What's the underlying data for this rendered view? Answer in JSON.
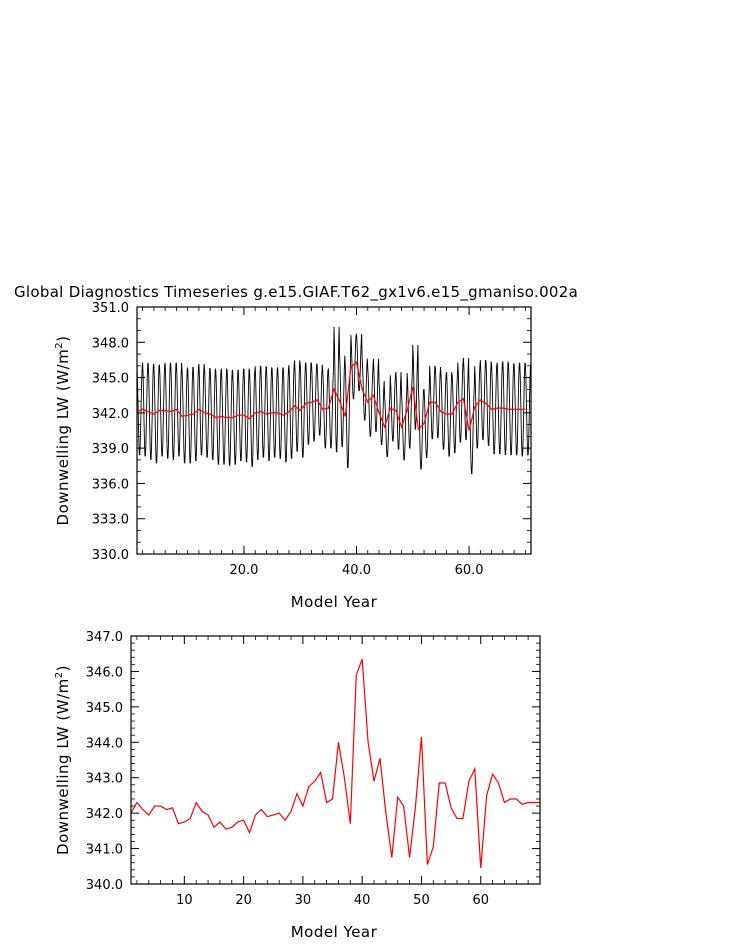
{
  "title": "Global Diagnostics Timeseries g.e15.GIAF.T62_gx1v6.e15_gmaniso.002a",
  "colors": {
    "monthly_line": "#000000",
    "annual_line": "#ff0000",
    "axis": "#000000"
  },
  "chart_data": [
    {
      "type": "line",
      "xlabel": "Model Year",
      "ylabel_main": "Downwelling LW (W/m",
      "ylabel_sup": "2",
      "ylabel_end": ")",
      "xlim": [
        1,
        71
      ],
      "ylim": [
        330,
        351
      ],
      "x_ticks": [
        20,
        40,
        60
      ],
      "x_tick_labels": [
        "20.0",
        "40.0",
        "60.0"
      ],
      "y_ticks": [
        330,
        333,
        336,
        339,
        342,
        345,
        348,
        351
      ],
      "y_tick_labels": [
        "330.0",
        "333.0",
        "336.0",
        "339.0",
        "342.0",
        "345.0",
        "348.0",
        "351.0"
      ],
      "series": [
        {
          "color": "#000000",
          "kind": "monthly",
          "annual_means": [
            342.1,
            342.3,
            342.1,
            341.9,
            342.2,
            342.2,
            342.1,
            342.3,
            341.7,
            341.8,
            341.9,
            342.3,
            342.0,
            341.9,
            341.6,
            341.7,
            341.6,
            341.6,
            341.8,
            341.8,
            341.5,
            342.0,
            342.1,
            341.9,
            342.0,
            342.0,
            341.8,
            342.1,
            342.6,
            342.2,
            342.8,
            342.9,
            343.1,
            342.3,
            342.4,
            344.0,
            343.0,
            341.7,
            345.9,
            346.3,
            344.0,
            342.9,
            343.5,
            342.0,
            340.8,
            342.4,
            342.2,
            340.8,
            342.2,
            344.2,
            340.6,
            341.1,
            342.9,
            342.9,
            342.1,
            341.9,
            341.9,
            342.9,
            343.2,
            340.5,
            342.5,
            343.1,
            342.8,
            342.3,
            342.4,
            342.4,
            342.3,
            342.3,
            342.3,
            342.3
          ],
          "seasonal_amplitudes": [
            3.8,
            4.1,
            4.2,
            4.3,
            4.0,
            4.2,
            4.2,
            4.1,
            4.1,
            4.2,
            4.1,
            4.0,
            3.9,
            4.0,
            4.1,
            4.2,
            4.2,
            4.1,
            4.0,
            4.1,
            4.2,
            4.1,
            4.0,
            4.1,
            3.9,
            4.0,
            4.1,
            4.1,
            4.0,
            4.1,
            3.6,
            3.4,
            3.1,
            3.4,
            3.5,
            5.5,
            4.0,
            4.5,
            2.8,
            2.5,
            2.7,
            3.0,
            3.2,
            2.8,
            2.6,
            2.9,
            3.4,
            2.9,
            3.3,
            3.7,
            3.5,
            3.0,
            3.2,
            3.1,
            3.3,
            3.7,
            3.4,
            3.5,
            3.6,
            3.8,
            3.6,
            3.5,
            3.7,
            3.9,
            4.0,
            4.1,
            4.0,
            4.0,
            4.1,
            4.0
          ]
        },
        {
          "color": "#ff0000",
          "kind": "annual",
          "x": [
            1,
            2,
            3,
            4,
            5,
            6,
            7,
            8,
            9,
            10,
            11,
            12,
            13,
            14,
            15,
            16,
            17,
            18,
            19,
            20,
            21,
            22,
            23,
            24,
            25,
            26,
            27,
            28,
            29,
            30,
            31,
            32,
            33,
            34,
            35,
            36,
            37,
            38,
            39,
            40,
            41,
            42,
            43,
            44,
            45,
            46,
            47,
            48,
            49,
            50,
            51,
            52,
            53,
            54,
            55,
            56,
            57,
            58,
            59,
            60,
            61,
            62,
            63,
            64,
            65,
            66,
            67,
            68,
            69,
            70
          ],
          "values": [
            342.1,
            342.3,
            342.1,
            341.9,
            342.2,
            342.2,
            342.1,
            342.3,
            341.7,
            341.8,
            341.9,
            342.3,
            342.0,
            341.9,
            341.6,
            341.7,
            341.6,
            341.6,
            341.8,
            341.8,
            341.5,
            342.0,
            342.1,
            341.9,
            342.0,
            342.0,
            341.8,
            342.1,
            342.6,
            342.2,
            342.8,
            342.9,
            343.1,
            342.3,
            342.4,
            344.0,
            343.0,
            341.7,
            345.9,
            346.3,
            344.0,
            342.9,
            343.5,
            342.0,
            340.8,
            342.4,
            342.2,
            340.8,
            342.2,
            344.2,
            340.6,
            341.1,
            342.9,
            342.9,
            342.1,
            341.9,
            341.9,
            342.9,
            343.2,
            340.5,
            342.5,
            343.1,
            342.8,
            342.3,
            342.4,
            342.4,
            342.3,
            342.3,
            342.3,
            342.3
          ]
        }
      ]
    },
    {
      "type": "line",
      "xlabel": "Model Year",
      "ylabel_main": "Downwelling LW (W/m",
      "ylabel_sup": "2",
      "ylabel_end": ")",
      "xlim": [
        1,
        70
      ],
      "ylim": [
        340,
        347
      ],
      "x_ticks": [
        10,
        20,
        30,
        40,
        50,
        60
      ],
      "x_tick_labels": [
        "10",
        "20",
        "30",
        "40",
        "50",
        "60"
      ],
      "y_ticks": [
        340,
        341,
        342,
        343,
        344,
        345,
        346,
        347
      ],
      "y_tick_labels": [
        "340.0",
        "341.0",
        "342.0",
        "343.0",
        "344.0",
        "345.0",
        "346.0",
        "347.0"
      ],
      "series": [
        {
          "color": "#ff0000",
          "kind": "annual",
          "x": [
            1,
            2,
            3,
            4,
            5,
            6,
            7,
            8,
            9,
            10,
            11,
            12,
            13,
            14,
            15,
            16,
            17,
            18,
            19,
            20,
            21,
            22,
            23,
            24,
            25,
            26,
            27,
            28,
            29,
            30,
            31,
            32,
            33,
            34,
            35,
            36,
            37,
            38,
            39,
            40,
            41,
            42,
            43,
            44,
            45,
            46,
            47,
            48,
            49,
            50,
            51,
            52,
            53,
            54,
            55,
            56,
            57,
            58,
            59,
            60,
            61,
            62,
            63,
            64,
            65,
            66,
            67,
            68,
            69,
            70
          ],
          "values": [
            342.0,
            342.3,
            342.1,
            341.95,
            342.2,
            342.2,
            342.1,
            342.15,
            341.7,
            341.75,
            341.85,
            342.3,
            342.05,
            341.95,
            341.6,
            341.75,
            341.55,
            341.6,
            341.75,
            341.8,
            341.45,
            341.95,
            342.1,
            341.9,
            341.95,
            342.0,
            341.8,
            342.05,
            342.55,
            342.2,
            342.75,
            342.9,
            343.15,
            342.3,
            342.4,
            344.0,
            343.0,
            341.7,
            345.9,
            346.35,
            344.0,
            342.9,
            343.55,
            342.0,
            340.75,
            342.45,
            342.2,
            340.75,
            342.2,
            344.15,
            340.55,
            341.05,
            342.85,
            342.85,
            342.15,
            341.85,
            341.85,
            342.9,
            343.25,
            340.45,
            342.5,
            343.1,
            342.85,
            342.3,
            342.4,
            342.4,
            342.25,
            342.3,
            342.3,
            342.3
          ]
        }
      ]
    }
  ]
}
